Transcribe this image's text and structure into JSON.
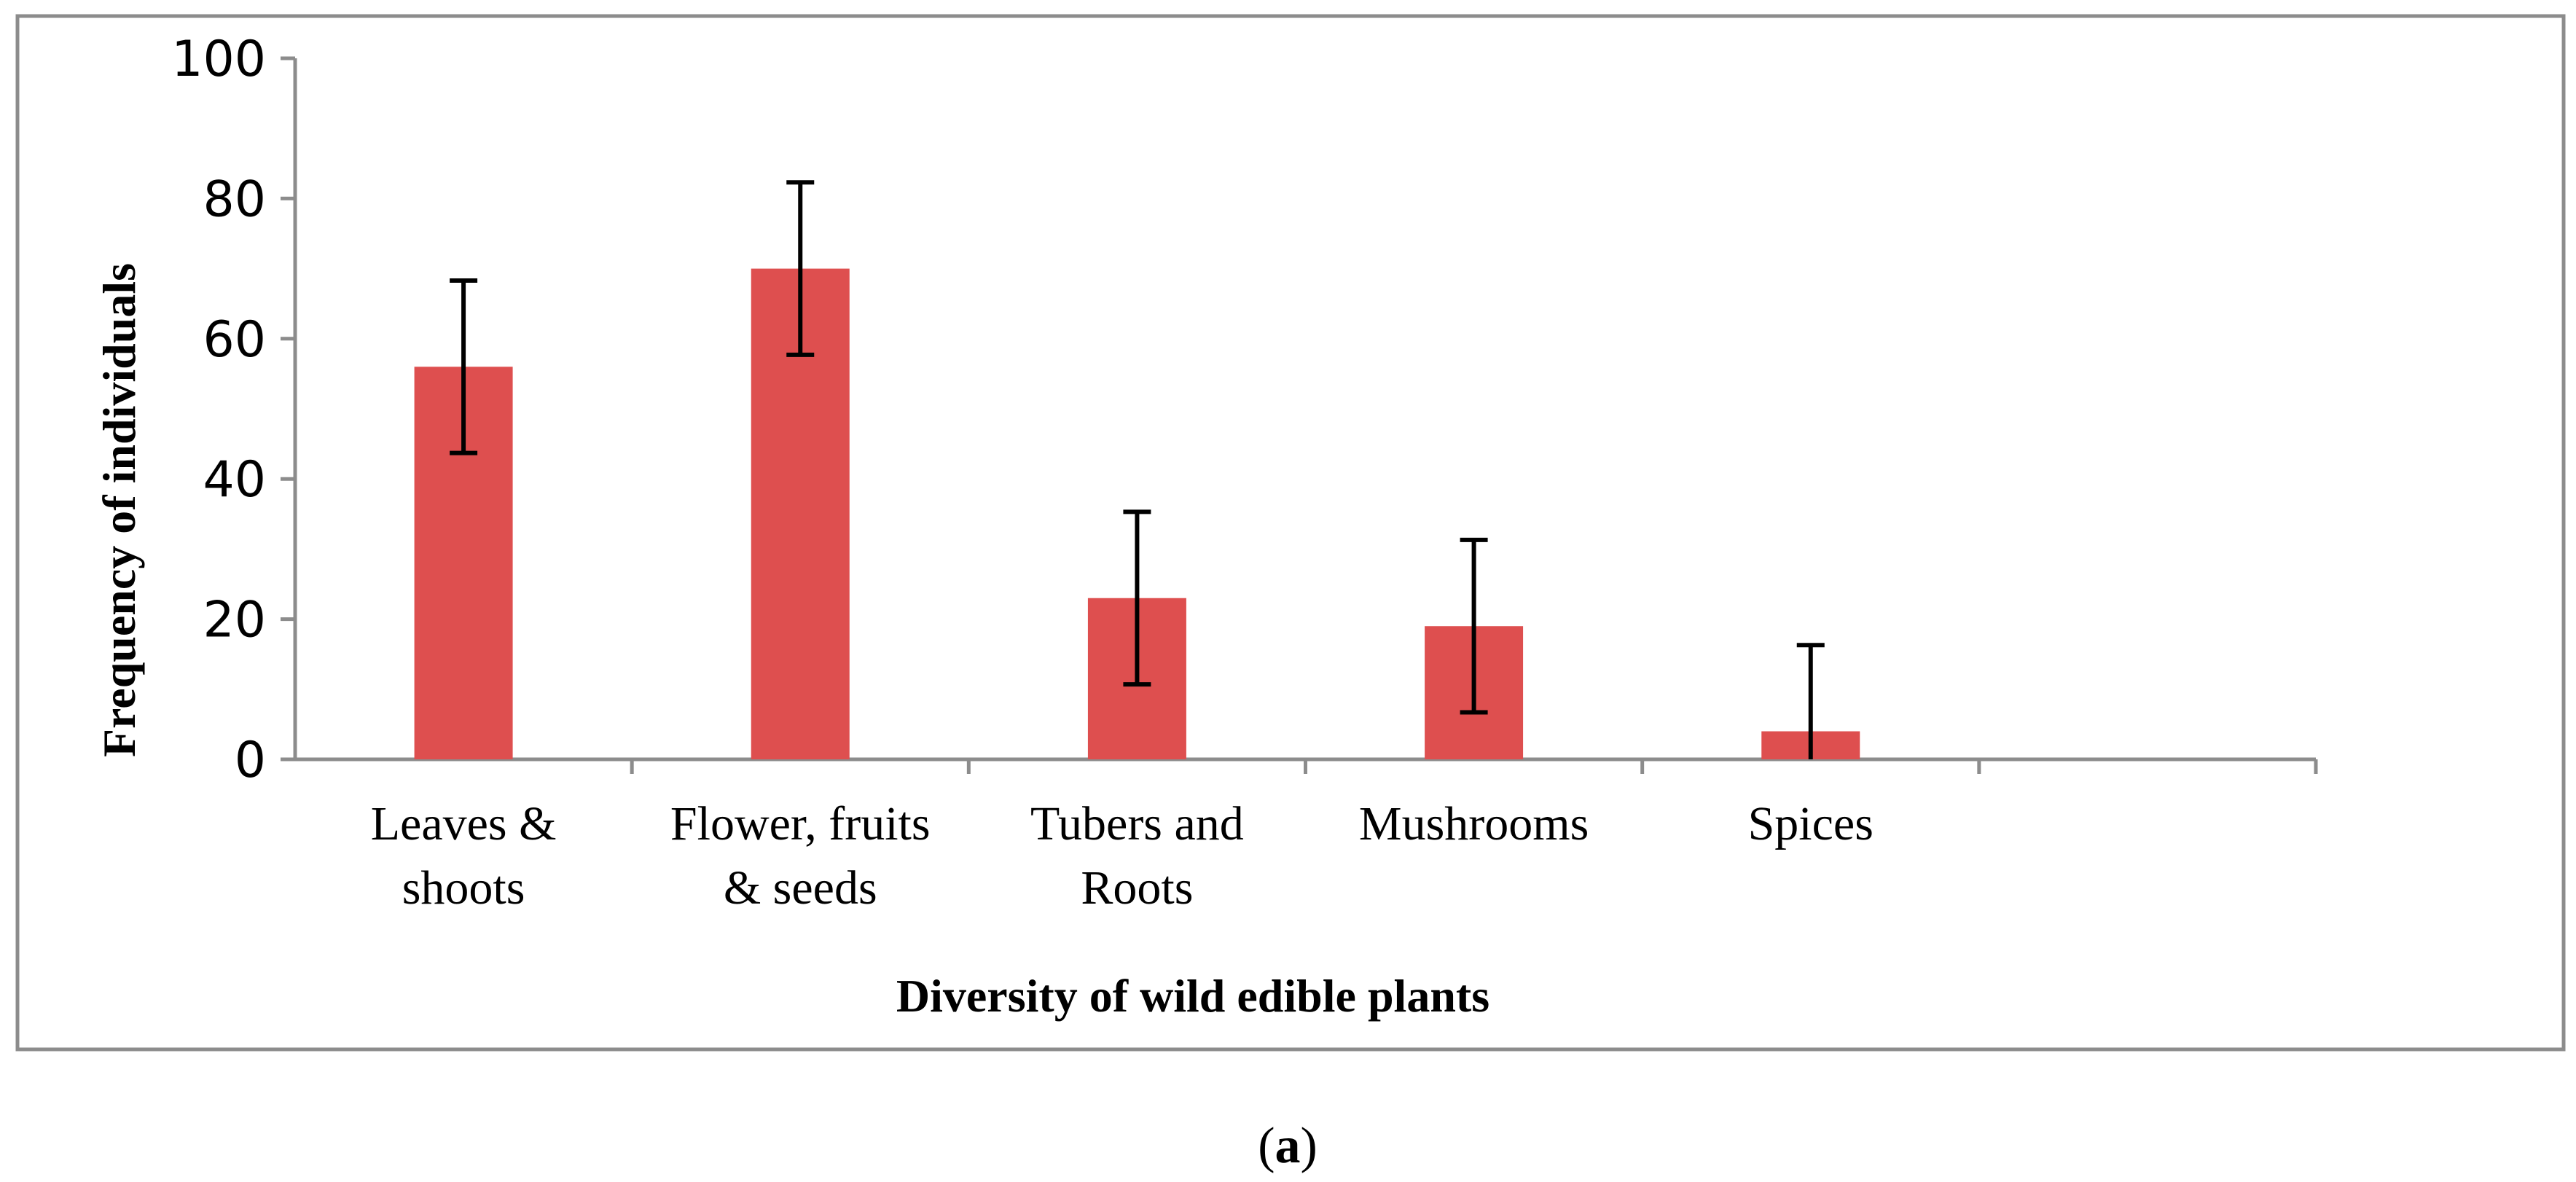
{
  "chart_data": {
    "type": "bar",
    "categories": [
      [
        "Leaves &",
        "shoots"
      ],
      [
        "Flower, fruits",
        "& seeds"
      ],
      [
        "Tubers and",
        "Roots"
      ],
      [
        "Mushrooms"
      ],
      [
        "Spices"
      ]
    ],
    "values": [
      56,
      70,
      23,
      19,
      4
    ],
    "error": [
      12.3,
      12.3,
      12.3,
      12.3,
      12.3
    ],
    "ylim": [
      0,
      100
    ],
    "yticks": [
      0,
      20,
      40,
      60,
      80,
      100
    ],
    "n_slots": 6,
    "xlabel": "Diversity of wild edible plants",
    "ylabel": "Frequency of individuals",
    "bar_color": "#de4f4f",
    "error_color": "#000000",
    "axis_color": "#8c8c8c"
  },
  "caption": {
    "open": "(",
    "letter": "a",
    "close": ")"
  }
}
